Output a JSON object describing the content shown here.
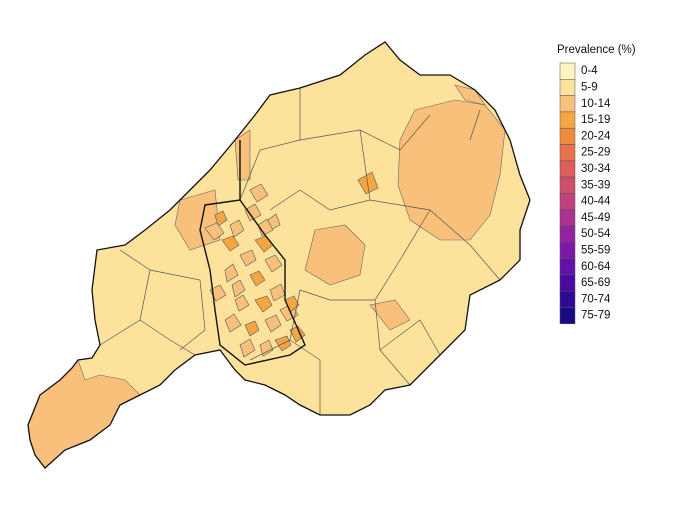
{
  "legend": {
    "title": "Prevalence (%)",
    "items": [
      {
        "label": "0-4",
        "color": "#fff5c2"
      },
      {
        "label": "5-9",
        "color": "#fde29c"
      },
      {
        "label": "10-14",
        "color": "#f8c07b"
      },
      {
        "label": "15-19",
        "color": "#f5a643"
      },
      {
        "label": "20-24",
        "color": "#f08b3e"
      },
      {
        "label": "25-29",
        "color": "#e8704c"
      },
      {
        "label": "30-34",
        "color": "#dd5c5c"
      },
      {
        "label": "35-39",
        "color": "#d04e6e"
      },
      {
        "label": "40-44",
        "color": "#bf407f"
      },
      {
        "label": "45-49",
        "color": "#aa3290"
      },
      {
        "label": "50-54",
        "color": "#9423a1"
      },
      {
        "label": "55-59",
        "color": "#7c17a8"
      },
      {
        "label": "60-64",
        "color": "#6210a8"
      },
      {
        "label": "65-69",
        "color": "#480ba0"
      },
      {
        "label": "70-74",
        "color": "#300896"
      },
      {
        "label": "75-79",
        "color": "#1a0a82"
      }
    ]
  }
}
